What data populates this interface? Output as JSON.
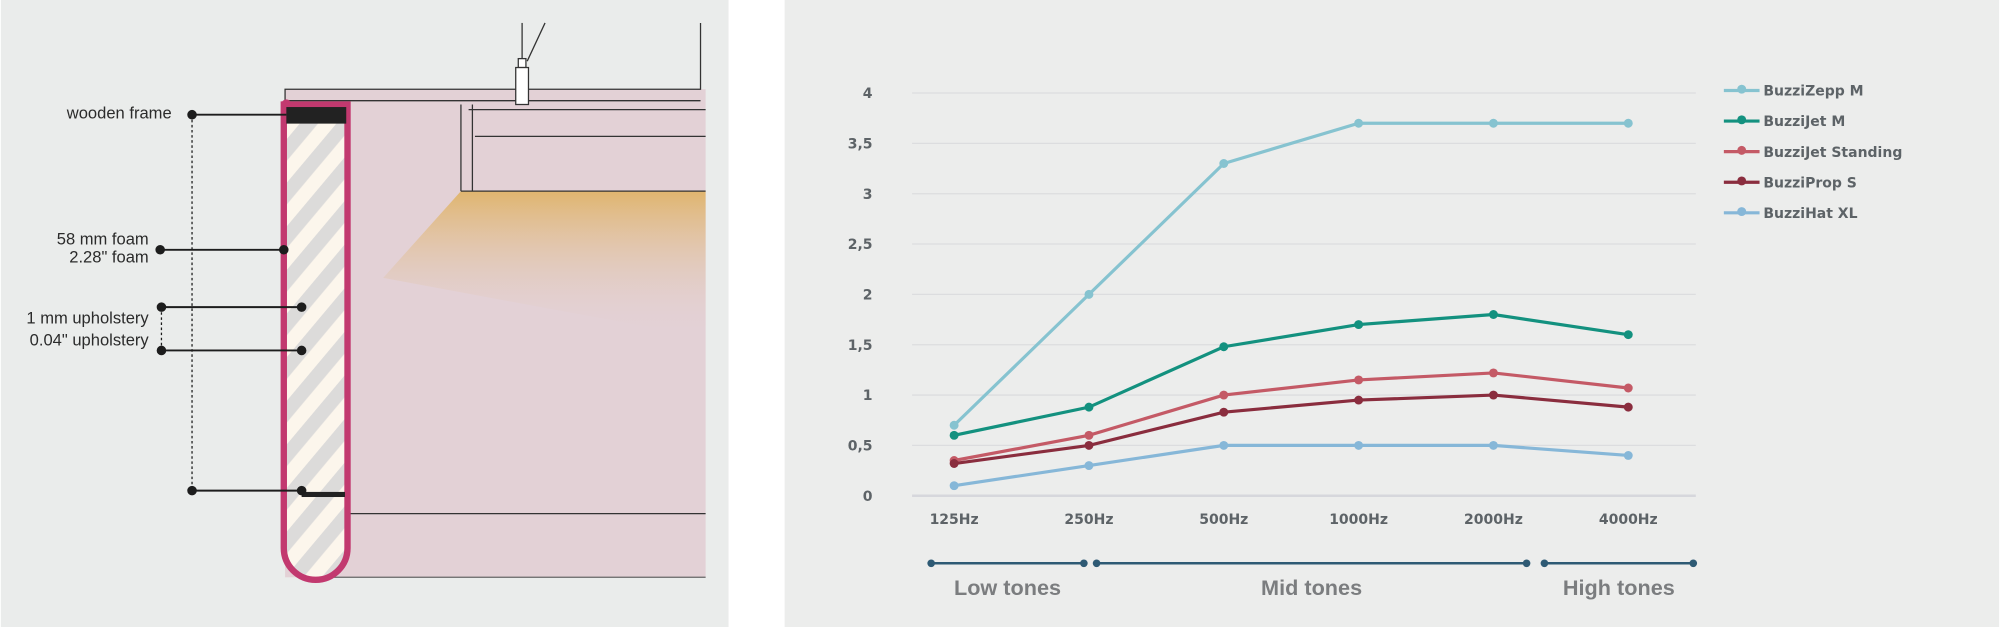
{
  "diagram": {
    "labels": {
      "wooden_frame": "wooden frame",
      "foam_mm": "58 mm foam",
      "foam_in": "2.28\" foam",
      "upholstery_mm": "1 mm upholstery",
      "upholstery_in": "0.04\" upholstery"
    },
    "colors": {
      "outline": "#c2396f",
      "panel": "#e3d1d6",
      "light": "#e0b56e"
    }
  },
  "chart_data": {
    "type": "line",
    "categories": [
      "125Hz",
      "250Hz",
      "500Hz",
      "1000Hz",
      "2000Hz",
      "4000Hz"
    ],
    "ylim": [
      0,
      4
    ],
    "yticks": [
      "0",
      "0,5",
      "1",
      "1,5",
      "2",
      "2,5",
      "3",
      "3,5",
      "4"
    ],
    "ytick_values": [
      0,
      0.5,
      1,
      1.5,
      2,
      2.5,
      3,
      3.5,
      4
    ],
    "grid": true,
    "legend": "right",
    "series": [
      {
        "name": "BuzziZepp M",
        "color": "#86c3d0",
        "values": [
          0.7,
          2.0,
          3.3,
          3.7,
          3.7,
          3.7
        ]
      },
      {
        "name": "BuzziJet M",
        "color": "#13917f",
        "values": [
          0.6,
          0.88,
          1.48,
          1.7,
          1.8,
          1.6
        ]
      },
      {
        "name": "BuzziJet Standing",
        "color": "#c45a66",
        "values": [
          0.35,
          0.6,
          1.0,
          1.15,
          1.22,
          1.07
        ]
      },
      {
        "name": "BuzziProp S",
        "color": "#8a2d3e",
        "values": [
          0.32,
          0.5,
          0.83,
          0.95,
          1.0,
          0.88
        ]
      },
      {
        "name": "BuzziHat XL",
        "color": "#86b7d8",
        "values": [
          0.1,
          0.3,
          0.5,
          0.5,
          0.5,
          0.4
        ]
      }
    ],
    "tone_ranges": [
      {
        "label": "Low tones",
        "from": "125Hz",
        "to": "250Hz"
      },
      {
        "label": "Mid tones",
        "from": "250Hz",
        "to": "2000Hz"
      },
      {
        "label": "High tones",
        "from": "2000Hz",
        "to": "4000Hz"
      }
    ],
    "tone_color": "#2e5a74"
  }
}
